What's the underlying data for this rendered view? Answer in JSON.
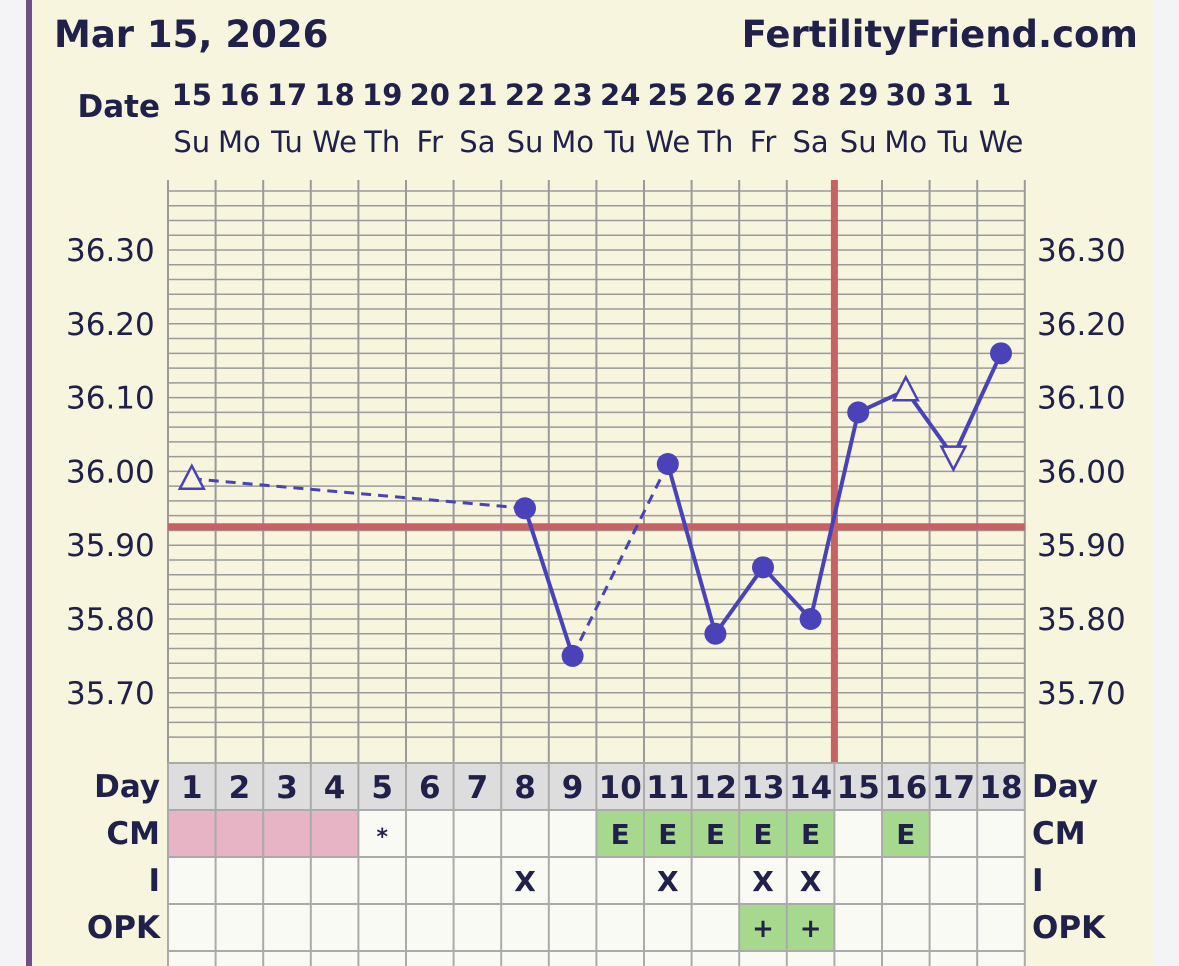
{
  "header": {
    "date": "Mar 15, 2026",
    "site": "FertilityFriend.com"
  },
  "labels": {
    "date_row": "Date",
    "day_row": "Day",
    "cm_row": "CM",
    "i_row": "I",
    "opk_row": "OPK"
  },
  "colors": {
    "background": "#f7f5de",
    "line": "#4a42b8",
    "coverline": "#c86262",
    "grid": "#9a9a9a",
    "period": "#e6b4c4",
    "egg_white": "#a6d98d",
    "frame": "#6e4f86"
  },
  "chart_data": {
    "type": "line",
    "title": "",
    "dates": [
      "15",
      "16",
      "17",
      "18",
      "19",
      "20",
      "21",
      "22",
      "23",
      "24",
      "25",
      "26",
      "27",
      "28",
      "29",
      "30",
      "31",
      "1"
    ],
    "weekdays": [
      "Su",
      "Mo",
      "Tu",
      "We",
      "Th",
      "Fr",
      "Sa",
      "Su",
      "Mo",
      "Tu",
      "We",
      "Th",
      "Fr",
      "Sa",
      "Su",
      "Mo",
      "Tu",
      "We"
    ],
    "cycle_days": [
      "1",
      "2",
      "3",
      "4",
      "5",
      "6",
      "7",
      "8",
      "9",
      "10",
      "11",
      "12",
      "13",
      "14",
      "15",
      "16",
      "17",
      "18"
    ],
    "y_ticks": [
      "36.30",
      "36.20",
      "36.10",
      "36.00",
      "35.90",
      "35.80",
      "35.70"
    ],
    "ylim": [
      35.62,
      36.39
    ],
    "temperatures": [
      {
        "day": 1,
        "value": 35.99,
        "marker": "open-triangle-up"
      },
      {
        "day": 8,
        "value": 35.95,
        "marker": "dot"
      },
      {
        "day": 9,
        "value": 35.75,
        "marker": "dot"
      },
      {
        "day": 11,
        "value": 36.01,
        "marker": "dot"
      },
      {
        "day": 12,
        "value": 35.78,
        "marker": "dot"
      },
      {
        "day": 13,
        "value": 35.87,
        "marker": "dot"
      },
      {
        "day": 14,
        "value": 35.8,
        "marker": "dot"
      },
      {
        "day": 15,
        "value": 36.08,
        "marker": "dot"
      },
      {
        "day": 16,
        "value": 36.11,
        "marker": "open-triangle-up"
      },
      {
        "day": 17,
        "value": 36.02,
        "marker": "open-triangle-down"
      },
      {
        "day": 18,
        "value": 36.16,
        "marker": "dot"
      }
    ],
    "segments": [
      {
        "from": 1,
        "to": 8,
        "style": "dashed"
      },
      {
        "from": 8,
        "to": 9,
        "style": "solid"
      },
      {
        "from": 9,
        "to": 11,
        "style": "dashed"
      },
      {
        "from": 11,
        "to": 12,
        "style": "solid"
      },
      {
        "from": 12,
        "to": 13,
        "style": "solid"
      },
      {
        "from": 13,
        "to": 14,
        "style": "solid"
      },
      {
        "from": 14,
        "to": 15,
        "style": "solid"
      },
      {
        "from": 15,
        "to": 16,
        "style": "solid"
      },
      {
        "from": 16,
        "to": 17,
        "style": "solid"
      },
      {
        "from": 17,
        "to": 18,
        "style": "solid"
      }
    ],
    "coverline": 35.925,
    "ovulation_day": 14,
    "cm": [
      "period",
      "period",
      "period",
      "period",
      "*",
      "",
      "",
      "",
      "",
      "E",
      "E",
      "E",
      "E",
      "E",
      "",
      "E",
      "",
      ""
    ],
    "intercourse": [
      "",
      "",
      "",
      "",
      "",
      "",
      "",
      "X",
      "",
      "",
      "X",
      "",
      "X",
      "X",
      "",
      "",
      "",
      ""
    ],
    "opk": [
      "",
      "",
      "",
      "",
      "",
      "",
      "",
      "",
      "",
      "",
      "",
      "",
      "+",
      "+",
      "",
      "",
      "",
      ""
    ],
    "grid": true
  }
}
